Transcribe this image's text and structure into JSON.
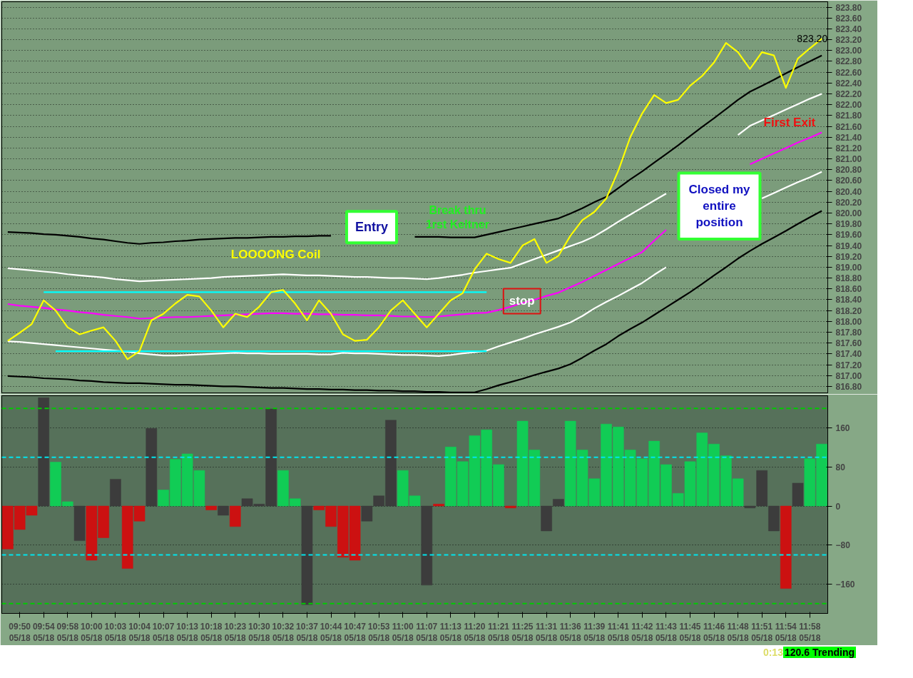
{
  "chart_data": [
    {
      "type": "line",
      "ylim": [
        816.68,
        823.9
      ],
      "grid": "y",
      "tick_labels": "y",
      "categories": [
        null,
        null,
        null,
        null,
        null,
        null,
        null,
        null,
        null,
        null,
        null,
        null,
        null,
        null,
        null,
        null,
        null,
        null,
        null,
        null,
        null,
        null,
        null,
        null,
        null,
        null,
        null,
        null,
        null,
        null,
        null,
        null,
        null,
        null,
        null,
        null,
        null,
        null,
        null,
        null,
        null,
        null,
        null,
        null,
        null,
        null,
        null,
        null,
        null,
        null,
        null,
        null,
        null,
        null,
        null,
        null,
        null,
        null,
        null,
        null,
        null,
        null,
        null,
        null,
        null,
        null,
        null,
        null,
        null
      ],
      "yticks": [
        {
          "value": 816.8,
          "label": "816.80"
        },
        {
          "value": 817.0,
          "label": "817.00"
        },
        {
          "value": 817.2,
          "label": "817.20"
        },
        {
          "value": 817.4,
          "label": "817.40"
        },
        {
          "value": 817.6,
          "label": "817.60"
        },
        {
          "value": 817.8,
          "label": "817.80"
        },
        {
          "value": 818.0,
          "label": "818.00"
        },
        {
          "value": 818.2,
          "label": "818.20"
        },
        {
          "value": 818.4,
          "label": "818.40"
        },
        {
          "value": 818.6,
          "label": "818.60"
        },
        {
          "value": 818.8,
          "label": "818.80"
        },
        {
          "value": 819.0,
          "label": "819.00"
        },
        {
          "value": 819.2,
          "label": "819.20"
        },
        {
          "value": 819.4,
          "label": "819.40"
        },
        {
          "value": 819.6,
          "label": "819.60"
        },
        {
          "value": 819.8,
          "label": "819.80"
        },
        {
          "value": 820.0,
          "label": "820.00"
        },
        {
          "value": 820.2,
          "label": "820.20"
        },
        {
          "value": 820.4,
          "label": "820.40"
        },
        {
          "value": 820.6,
          "label": "820.60"
        },
        {
          "value": 820.8,
          "label": "820.80"
        },
        {
          "value": 821.0,
          "label": "821.00"
        },
        {
          "value": 821.2,
          "label": "821.20"
        },
        {
          "value": 821.4,
          "label": "821.40"
        },
        {
          "value": 821.6,
          "label": "821.60"
        },
        {
          "value": 821.8,
          "label": "821.80"
        },
        {
          "value": 822.0,
          "label": "822.00"
        },
        {
          "value": 822.2,
          "label": "822.20"
        },
        {
          "value": 822.4,
          "label": "822.40"
        },
        {
          "value": 822.6,
          "label": "822.60"
        },
        {
          "value": 822.8,
          "label": "822.80"
        },
        {
          "value": 823.0,
          "label": "823.00"
        },
        {
          "value": 823.2,
          "label": "823.20"
        },
        {
          "value": 823.4,
          "label": "823.40"
        },
        {
          "value": 823.6,
          "label": "823.60"
        },
        {
          "value": 823.8,
          "label": "823.80"
        }
      ],
      "series": [
        {
          "color": "#000000",
          "values": [
            819.65,
            819.64,
            819.63,
            819.61,
            819.6,
            819.58,
            819.56,
            819.53,
            819.51,
            819.48,
            819.45,
            819.43,
            819.45,
            819.46,
            819.48,
            819.49,
            819.51,
            819.52,
            819.53,
            819.54,
            819.54,
            819.55,
            819.56,
            819.56,
            819.57,
            819.57,
            819.58,
            819.58,
            null,
            null,
            null,
            null,
            null,
            null,
            819.56,
            819.56,
            819.56,
            819.55,
            819.55,
            819.55,
            819.6,
            819.65,
            819.7,
            819.75,
            819.8,
            819.85,
            819.9,
            819.99,
            820.09,
            820.2,
            820.3,
            820.46,
            820.62,
            820.77,
            820.93,
            821.09,
            821.25,
            821.42,
            821.59,
            821.75,
            821.92,
            822.09,
            822.24,
            822.35,
            822.46,
            822.58,
            822.69,
            822.8,
            822.91
          ]
        },
        {
          "color": "#ffffff",
          "values": [
            818.98,
            818.96,
            818.94,
            818.92,
            818.9,
            818.87,
            818.85,
            818.83,
            818.81,
            818.78,
            818.76,
            818.74,
            818.75,
            818.76,
            818.77,
            818.78,
            818.79,
            818.8,
            818.82,
            818.83,
            818.84,
            818.85,
            818.86,
            818.87,
            818.86,
            818.85,
            818.85,
            818.84,
            818.83,
            818.82,
            818.82,
            818.81,
            818.8,
            818.8,
            818.79,
            818.78,
            818.8,
            818.83,
            818.86,
            818.9,
            818.93,
            818.96,
            818.99,
            819.07,
            819.15,
            819.23,
            819.31,
            819.39,
            819.47,
            819.57,
            819.7,
            819.84,
            819.97,
            820.1,
            820.23,
            820.36,
            null,
            null,
            null,
            null,
            null,
            821.44,
            821.61,
            821.71,
            821.81,
            821.91,
            822.01,
            822.11,
            822.2
          ]
        },
        {
          "color": "#ff00ff",
          "values": [
            818.32,
            818.29,
            818.27,
            818.25,
            818.22,
            818.2,
            818.17,
            818.15,
            818.12,
            818.1,
            818.08,
            818.05,
            818.06,
            818.07,
            818.08,
            818.08,
            818.09,
            818.1,
            818.11,
            818.12,
            818.13,
            818.14,
            818.15,
            818.15,
            818.14,
            818.14,
            818.13,
            818.13,
            818.12,
            818.12,
            818.11,
            818.11,
            818.1,
            818.09,
            818.09,
            818.08,
            818.09,
            818.11,
            818.13,
            818.15,
            818.16,
            818.21,
            818.27,
            818.34,
            818.4,
            818.47,
            818.53,
            818.63,
            818.73,
            818.84,
            818.95,
            819.06,
            819.17,
            819.28,
            819.49,
            819.69,
            null,
            null,
            null,
            null,
            null,
            null,
            820.9,
            821.0,
            821.1,
            821.2,
            821.3,
            821.39,
            821.49
          ]
        },
        {
          "color": "#ffffff",
          "values": [
            817.63,
            817.62,
            817.6,
            817.58,
            817.56,
            817.54,
            817.52,
            817.5,
            817.48,
            817.46,
            817.44,
            817.41,
            817.39,
            817.37,
            817.37,
            817.38,
            817.39,
            817.4,
            817.41,
            817.42,
            817.41,
            817.41,
            817.4,
            817.4,
            817.4,
            817.4,
            817.39,
            817.39,
            817.42,
            817.41,
            817.41,
            817.4,
            817.39,
            817.38,
            817.38,
            817.37,
            817.36,
            817.38,
            817.41,
            817.43,
            817.46,
            817.54,
            817.61,
            817.68,
            817.76,
            817.83,
            817.9,
            817.98,
            818.1,
            818.24,
            818.36,
            818.47,
            818.59,
            818.71,
            818.86,
            819.0,
            null,
            null,
            null,
            null,
            null,
            null,
            null,
            820.27,
            820.37,
            820.47,
            820.57,
            820.66,
            820.76
          ]
        },
        {
          "color": "#000000",
          "values": [
            816.99,
            816.98,
            816.97,
            816.95,
            816.94,
            816.93,
            816.91,
            816.9,
            816.88,
            816.87,
            816.86,
            816.86,
            816.85,
            816.84,
            816.83,
            816.83,
            816.82,
            816.81,
            816.8,
            816.8,
            816.79,
            816.78,
            816.77,
            816.77,
            816.76,
            816.75,
            816.75,
            816.74,
            816.74,
            816.73,
            816.73,
            816.72,
            816.72,
            816.71,
            816.71,
            816.7,
            816.7,
            816.69,
            816.69,
            816.69,
            816.75,
            816.82,
            816.88,
            816.94,
            817.01,
            817.07,
            817.13,
            817.21,
            817.33,
            817.46,
            817.58,
            817.73,
            817.86,
            817.98,
            818.12,
            818.26,
            818.4,
            818.54,
            818.69,
            818.85,
            819.0,
            819.16,
            819.3,
            819.43,
            819.55,
            819.67,
            819.8,
            819.92,
            820.04
          ]
        },
        {
          "color": "#00ffff",
          "values": [
            null,
            null,
            null,
            818.54,
            818.54,
            818.54,
            818.54,
            818.54,
            818.54,
            818.54,
            818.54,
            818.54,
            818.54,
            818.54,
            818.54,
            818.54,
            818.54,
            818.54,
            818.54,
            818.54,
            818.54,
            818.54,
            818.54,
            818.54,
            818.54,
            818.54,
            818.54,
            818.54,
            818.54,
            818.54,
            818.54,
            818.54,
            818.54,
            818.54,
            818.54,
            818.54,
            818.54,
            818.54,
            818.54,
            818.54,
            818.54,
            null,
            null,
            null,
            null,
            null,
            null,
            null,
            null,
            null,
            null,
            null,
            null,
            null,
            null,
            null,
            null,
            null,
            null,
            null,
            null,
            null,
            null,
            null,
            null,
            null,
            null,
            null,
            null
          ]
        },
        {
          "color": "#00ffff",
          "values": [
            null,
            null,
            null,
            null,
            817.45,
            817.45,
            817.45,
            817.45,
            817.45,
            817.45,
            817.45,
            817.45,
            817.45,
            817.45,
            817.45,
            817.45,
            817.45,
            817.45,
            817.45,
            817.45,
            817.45,
            817.45,
            817.45,
            817.45,
            817.45,
            817.45,
            817.45,
            817.45,
            817.45,
            817.45,
            817.45,
            817.45,
            817.45,
            817.45,
            817.45,
            817.45,
            817.45,
            817.45,
            817.45,
            817.45,
            817.45,
            null,
            null,
            null,
            null,
            null,
            null,
            null,
            null,
            null,
            null,
            null,
            null,
            null,
            null,
            null,
            null,
            null,
            null,
            null,
            null,
            null,
            null,
            null,
            null,
            null,
            null,
            null,
            null
          ]
        },
        {
          "color": "#ffff00",
          "values": [
            817.64,
            817.79,
            817.95,
            818.39,
            818.2,
            817.89,
            817.76,
            817.83,
            817.89,
            817.64,
            817.3,
            817.45,
            818.02,
            818.14,
            818.33,
            818.49,
            818.46,
            818.2,
            817.89,
            818.14,
            818.08,
            818.27,
            818.54,
            818.58,
            818.33,
            818.02,
            818.39,
            818.14,
            817.76,
            817.64,
            817.66,
            817.89,
            818.2,
            818.39,
            818.14,
            817.89,
            818.14,
            818.39,
            818.52,
            818.96,
            819.25,
            819.15,
            819.08,
            819.4,
            819.52,
            819.08,
            819.21,
            819.58,
            819.87,
            820.02,
            820.27,
            820.78,
            821.4,
            821.84,
            822.18,
            822.03,
            822.09,
            822.35,
            822.53,
            822.78,
            823.14,
            822.97,
            822.66,
            822.97,
            822.91,
            822.31,
            822.85,
            823.04,
            823.22
          ]
        }
      ],
      "annotations": [
        "LOOOONG Coil",
        "Entry",
        "Break thru\n1rst Keltner",
        "stop",
        "First Exit",
        "Closed my\nentire\nposition",
        "823.20"
      ]
    },
    {
      "type": "bar",
      "ylim": [
        -220,
        226
      ],
      "grid": "y",
      "yticks": [
        -160,
        -80,
        0,
        80,
        160
      ],
      "categories": [
        null,
        "09:50\n05/18",
        null,
        "09:54\n05/18",
        null,
        "09:58\n05/18",
        null,
        "10:00\n05/18",
        null,
        "10:03\n05/18",
        null,
        "10:04\n05/18",
        null,
        "10:07\n05/18",
        null,
        "10:13\n05/18",
        null,
        "10:18\n05/18",
        null,
        "10:23\n05/18",
        null,
        "10:30\n05/18",
        null,
        "10:32\n05/18",
        null,
        "10:37\n05/18",
        null,
        "10:44\n05/18",
        null,
        "10:47\n05/18",
        null,
        "10:53\n05/18",
        null,
        "11:00\n05/18",
        null,
        "11:07\n05/18",
        null,
        "11:13\n05/18",
        null,
        "11:20\n05/18",
        null,
        "11:21\n05/18",
        null,
        "11:25\n05/18",
        null,
        "11:31\n05/18",
        null,
        "11:36\n05/18",
        null,
        "11:39\n05/18",
        null,
        "11:41\n05/18",
        null,
        "11:42\n05/18",
        null,
        "11:43\n05/18",
        null,
        "11:45\n05/18",
        null,
        "11:46\n05/18",
        null,
        "11:48\n05/18",
        null,
        "11:51\n05/18",
        null,
        "11:54\n05/18",
        null,
        "11:58\n05/18",
        null
      ],
      "values": [
        -88,
        -48,
        -19,
        222,
        90,
        9,
        -71,
        -111,
        -65,
        55,
        -128,
        -31,
        159,
        33,
        96,
        107,
        73,
        -8,
        -19,
        -42,
        15,
        4,
        199,
        73,
        15,
        -202,
        -8,
        -42,
        -105,
        -111,
        -31,
        21,
        176,
        73,
        21,
        -162,
        4,
        121,
        91,
        144,
        156,
        85,
        -4,
        174,
        115,
        -51,
        14,
        174,
        115,
        56,
        168,
        162,
        115,
        97,
        133,
        85,
        26,
        91,
        150,
        127,
        103,
        56,
        -4,
        73,
        -51,
        -169,
        47,
        97,
        127
      ],
      "colors": [
        "#cc1111",
        "#cc1111",
        "#cc1111",
        "#3c3c3c",
        "#11cc55",
        "#11cc55",
        "#3c3c3c",
        "#cc1111",
        "#cc1111",
        "#3c3c3c",
        "#cc1111",
        "#cc1111",
        "#3c3c3c",
        "#11cc55",
        "#11cc55",
        "#11cc55",
        "#11cc55",
        "#cc1111",
        "#3c3c3c",
        "#cc1111",
        "#3c3c3c",
        "#3c3c3c",
        "#3c3c3c",
        "#11cc55",
        "#11cc55",
        "#3c3c3c",
        "#cc1111",
        "#cc1111",
        "#cc1111",
        "#cc1111",
        "#3c3c3c",
        "#3c3c3c",
        "#3c3c3c",
        "#11cc55",
        "#11cc55",
        "#3c3c3c",
        "#cc1111",
        "#11cc55",
        "#11cc55",
        "#11cc55",
        "#11cc55",
        "#11cc55",
        "#cc1111",
        "#11cc55",
        "#11cc55",
        "#3c3c3c",
        "#3c3c3c",
        "#11cc55",
        "#11cc55",
        "#11cc55",
        "#11cc55",
        "#11cc55",
        "#11cc55",
        "#11cc55",
        "#11cc55",
        "#11cc55",
        "#11cc55",
        "#11cc55",
        "#11cc55",
        "#11cc55",
        "#11cc55",
        "#11cc55",
        "#3c3c3c",
        "#3c3c3c",
        "#3c3c3c",
        "#cc1111",
        "#3c3c3c",
        "#11cc55",
        "#11cc55"
      ],
      "ref_lines": [
        {
          "axis": "y",
          "value": 200,
          "color": "#00cc00",
          "line_style": "dashed"
        },
        {
          "axis": "y",
          "value": 100,
          "color": "#00e5ee",
          "line_style": "dashed"
        },
        {
          "axis": "y",
          "value": -100,
          "color": "#00e5ee",
          "line_style": "dashed"
        },
        {
          "axis": "y",
          "value": -200,
          "color": "#00cc00",
          "line_style": "dashed"
        }
      ],
      "annotations": [
        "0:13",
        "120.6 Trending"
      ]
    }
  ]
}
